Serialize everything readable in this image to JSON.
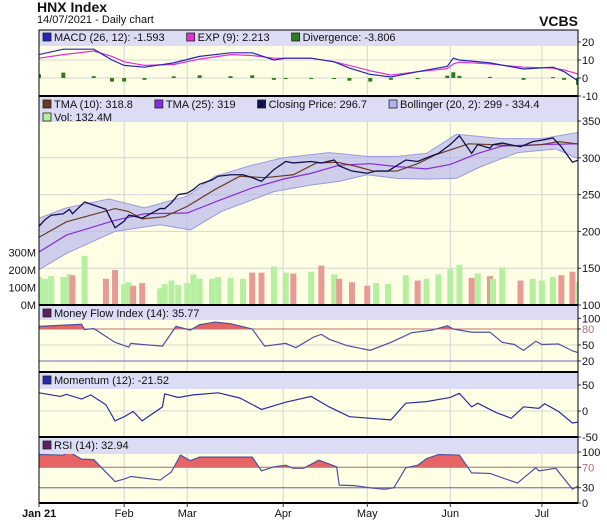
{
  "header": {
    "title": "HNX Index",
    "subtitle": "14/07/2021 - Daily chart",
    "brand": "VCBS"
  },
  "colors": {
    "plot_bg": "#ffffe6",
    "legend_bg": "#dcdcf4",
    "macd": "#2424c0",
    "exp": "#e030d8",
    "divergence": "#2e7d1a",
    "tma10": "#6b3a22",
    "tma25": "#8a2be2",
    "close": "#10104a",
    "bollinger": "#b4b4ee",
    "vol_up": "#b4f0a0",
    "vol_down": "#e89a96",
    "indicator_line": "#5050a0",
    "overbought_fill": "#e86464",
    "momentum": "#2a2aa8"
  },
  "x_axis": {
    "labels": [
      {
        "label": "Jan 21",
        "date": "01-04"
      },
      {
        "label": "Feb",
        "date": "02-01"
      },
      {
        "label": "Mar",
        "date": "03-01"
      },
      {
        "label": "Apr",
        "date": "04-01"
      },
      {
        "label": "May",
        "date": "05-04"
      },
      {
        "label": "Jun",
        "date": "06-01"
      },
      {
        "label": "Jul",
        "date": "07-01"
      }
    ]
  },
  "chart_data": [
    {
      "type": "line",
      "panel": "macd",
      "ylim": [
        -10,
        25
      ],
      "yticks": [
        "20",
        "10",
        "0",
        "-10"
      ],
      "ytick_values": [
        20,
        10,
        0,
        -10
      ],
      "legend": [
        {
          "label": "MACD (26, 12): -1.593",
          "color": "#2424c0"
        },
        {
          "label": "EXP (9): 2.213",
          "color": "#e030d8"
        },
        {
          "label": "Divergence: -3.806",
          "color": "#2e7d1a"
        }
      ],
      "dates": [
        "01-04",
        "01-12",
        "01-22",
        "01-28",
        "02-01",
        "02-10",
        "02-23",
        "03-05",
        "03-15",
        "03-22",
        "03-29",
        "04-02",
        "04-12",
        "04-21",
        "04-27",
        "05-05",
        "05-12",
        "05-21",
        "05-31",
        "06-02",
        "06-04",
        "06-14",
        "06-25",
        "07-05",
        "07-09",
        "07-14"
      ],
      "macd": [
        13,
        16,
        16,
        10,
        7,
        6,
        8.4,
        12,
        14,
        14,
        10,
        11,
        11,
        9,
        5.5,
        2,
        0.6,
        3.5,
        6.5,
        11,
        10,
        8.4,
        5,
        6,
        3.5,
        -1.593
      ],
      "exp": [
        11,
        13,
        15,
        12,
        9,
        7,
        7.5,
        10.5,
        13,
        12.5,
        11,
        11,
        11,
        9,
        7,
        4,
        1.6,
        3.5,
        5.2,
        7.8,
        8.8,
        7.8,
        6,
        5.5,
        4.5,
        2.213
      ],
      "divergence": [
        2,
        3,
        1,
        -2,
        -2,
        -1,
        0.9,
        1.5,
        1,
        1.5,
        -1,
        0,
        0,
        0,
        -1.5,
        -2,
        -1,
        0,
        1.3,
        3.2,
        1.2,
        0.6,
        -1,
        0.5,
        -1,
        -3.806
      ]
    },
    {
      "type": "line",
      "panel": "price",
      "ylim": [
        100,
        360
      ],
      "yticks": [
        "350",
        "300",
        "250",
        "200",
        "150",
        "100"
      ],
      "ytick_values": [
        350,
        300,
        250,
        200,
        150,
        100
      ],
      "vol_ticks": [
        "300M",
        "200M",
        "100M",
        "0M"
      ],
      "vol_tick_values": [
        300,
        200,
        100,
        0
      ],
      "legend": [
        {
          "label": "TMA (10): 318.8",
          "color": "#6b3a22"
        },
        {
          "label": "TMA (25): 319",
          "color": "#8a2be2"
        },
        {
          "label": "Closing Price: 296.7",
          "color": "#10104a"
        },
        {
          "label": "Bollinger (20, 2): 299 - 334.4",
          "color": "#b4b4ee"
        },
        {
          "label": "Vol: 132.4M",
          "color": "#b4f0a0"
        }
      ],
      "close": [
        [
          "01-04",
          207
        ],
        [
          "01-06",
          216
        ],
        [
          "01-08",
          222
        ],
        [
          "01-12",
          224
        ],
        [
          "01-14",
          230
        ],
        [
          "01-15",
          224
        ],
        [
          "01-19",
          240
        ],
        [
          "01-26",
          230
        ],
        [
          "01-29",
          205
        ],
        [
          "02-01",
          214
        ],
        [
          "02-03",
          222
        ],
        [
          "02-05",
          221
        ],
        [
          "02-09",
          218
        ],
        [
          "02-17",
          231
        ],
        [
          "02-19",
          231
        ],
        [
          "02-22",
          239
        ],
        [
          "02-25",
          250
        ],
        [
          "03-01",
          252
        ],
        [
          "03-03",
          257
        ],
        [
          "03-05",
          264
        ],
        [
          "03-09",
          270
        ],
        [
          "03-11",
          275
        ],
        [
          "03-15",
          277
        ],
        [
          "03-19",
          277
        ],
        [
          "03-22",
          273
        ],
        [
          "03-25",
          268
        ],
        [
          "03-29",
          284
        ],
        [
          "04-02",
          295
        ],
        [
          "04-05",
          293
        ],
        [
          "04-12",
          295
        ],
        [
          "04-16",
          293
        ],
        [
          "04-21",
          297
        ],
        [
          "04-23",
          289
        ],
        [
          "04-28",
          282
        ],
        [
          "05-04",
          279
        ],
        [
          "05-07",
          282
        ],
        [
          "05-11",
          282
        ],
        [
          "05-17",
          297
        ],
        [
          "05-21",
          295
        ],
        [
          "05-24",
          300
        ],
        [
          "05-28",
          306
        ],
        [
          "06-01",
          318
        ],
        [
          "06-04",
          330
        ],
        [
          "06-08",
          306
        ],
        [
          "06-10",
          318
        ],
        [
          "06-14",
          313
        ],
        [
          "06-15",
          318
        ],
        [
          "06-18",
          320
        ],
        [
          "06-24",
          315
        ],
        [
          "06-28",
          322
        ],
        [
          "07-01",
          324
        ],
        [
          "07-05",
          327
        ],
        [
          "07-08",
          315
        ],
        [
          "07-12",
          294
        ],
        [
          "07-14",
          296.7
        ]
      ],
      "volume_m": [
        160,
        150,
        165,
        160,
        175,
        170,
        280,
        150,
        200,
        120,
        130,
        110,
        125,
        95,
        120,
        140,
        115,
        125,
        175,
        150,
        150,
        160,
        155,
        150,
        185,
        185,
        220,
        185,
        180,
        190,
        225,
        175,
        150,
        130,
        110,
        125,
        120,
        170,
        140,
        150,
        175,
        205,
        230,
        155,
        180,
        165,
        150,
        215,
        140,
        150,
        140,
        160,
        170,
        190,
        132.4
      ],
      "tma10": [
        [
          "01-04",
          192
        ],
        [
          "01-13",
          213
        ],
        [
          "01-29",
          231
        ],
        [
          "02-03",
          227
        ],
        [
          "02-09",
          217
        ],
        [
          "02-19",
          220
        ],
        [
          "03-01",
          234
        ],
        [
          "03-10",
          257
        ],
        [
          "03-18",
          275
        ],
        [
          "03-26",
          273
        ],
        [
          "04-05",
          277
        ],
        [
          "04-14",
          293
        ],
        [
          "04-22",
          294
        ],
        [
          "04-29",
          289
        ],
        [
          "05-06",
          282
        ],
        [
          "05-14",
          282
        ],
        [
          "05-21",
          292
        ],
        [
          "05-27",
          304
        ],
        [
          "06-07",
          319
        ],
        [
          "06-14",
          318
        ],
        [
          "06-23",
          316
        ],
        [
          "07-01",
          318
        ],
        [
          "07-07",
          322
        ],
        [
          "07-14",
          318.8
        ]
      ],
      "tma25": [
        [
          "01-04",
          172
        ],
        [
          "01-13",
          195
        ],
        [
          "01-29",
          215
        ],
        [
          "02-10",
          224
        ],
        [
          "03-01",
          225
        ],
        [
          "03-10",
          240
        ],
        [
          "03-22",
          259
        ],
        [
          "04-01",
          271
        ],
        [
          "04-12",
          279
        ],
        [
          "04-23",
          290
        ],
        [
          "05-05",
          292
        ],
        [
          "05-14",
          288
        ],
        [
          "05-24",
          285
        ],
        [
          "06-01",
          291
        ],
        [
          "06-10",
          306
        ],
        [
          "06-18",
          316
        ],
        [
          "07-01",
          318
        ],
        [
          "07-14",
          319
        ]
      ],
      "bollinger_upper": [
        [
          "01-04",
          218
        ],
        [
          "01-13",
          232
        ],
        [
          "01-27",
          244
        ],
        [
          "02-10",
          232
        ],
        [
          "03-01",
          248
        ],
        [
          "03-10",
          275
        ],
        [
          "03-22",
          290
        ],
        [
          "04-01",
          300
        ],
        [
          "04-19",
          307
        ],
        [
          "05-04",
          302
        ],
        [
          "05-14",
          302
        ],
        [
          "05-24",
          306
        ],
        [
          "06-03",
          332
        ],
        [
          "06-18",
          326
        ],
        [
          "07-01",
          326
        ],
        [
          "07-14",
          334.4
        ]
      ],
      "bollinger_lower": [
        [
          "01-04",
          148
        ],
        [
          "01-13",
          170
        ],
        [
          "01-29",
          200
        ],
        [
          "02-17",
          209
        ],
        [
          "03-02",
          202
        ],
        [
          "03-12",
          227
        ],
        [
          "03-29",
          254
        ],
        [
          "04-12",
          263
        ],
        [
          "04-23",
          268
        ],
        [
          "05-04",
          277
        ],
        [
          "05-14",
          272
        ],
        [
          "05-24",
          271
        ],
        [
          "06-03",
          272
        ],
        [
          "06-11",
          288
        ],
        [
          "06-23",
          307
        ],
        [
          "07-06",
          312
        ],
        [
          "07-14",
          299
        ]
      ]
    },
    {
      "type": "line",
      "panel": "mfi",
      "ylim": [
        0,
        100
      ],
      "yticks": [
        "100",
        "80",
        "50",
        "20"
      ],
      "ytick_values": [
        100,
        80,
        50,
        20
      ],
      "overbought": 80,
      "oversold": 20,
      "legend": [
        {
          "label": "Money Flow Index (14): 35.77",
          "color": "#602060"
        }
      ],
      "values": [
        [
          "01-04",
          85
        ],
        [
          "01-18",
          89
        ],
        [
          "01-19",
          79
        ],
        [
          "01-22",
          81
        ],
        [
          "01-29",
          55
        ],
        [
          "02-03",
          46
        ],
        [
          "02-04",
          53
        ],
        [
          "02-09",
          51
        ],
        [
          "02-18",
          48
        ],
        [
          "02-24",
          85
        ],
        [
          "03-02",
          78
        ],
        [
          "03-05",
          88
        ],
        [
          "03-10",
          93
        ],
        [
          "03-15",
          90
        ],
        [
          "03-22",
          80
        ],
        [
          "03-26",
          48
        ],
        [
          "04-02",
          53
        ],
        [
          "04-06",
          45
        ],
        [
          "04-13",
          65
        ],
        [
          "04-16",
          70
        ],
        [
          "04-19",
          61
        ],
        [
          "04-26",
          49
        ],
        [
          "05-05",
          40
        ],
        [
          "05-12",
          55
        ],
        [
          "05-19",
          73
        ],
        [
          "05-26",
          78
        ],
        [
          "05-31",
          86
        ],
        [
          "06-02",
          80
        ],
        [
          "06-08",
          74
        ],
        [
          "06-14",
          74
        ],
        [
          "06-18",
          55
        ],
        [
          "06-22",
          51
        ],
        [
          "06-25",
          40
        ],
        [
          "06-29",
          57
        ],
        [
          "07-01",
          51
        ],
        [
          "07-07",
          52
        ],
        [
          "07-12",
          39
        ],
        [
          "07-14",
          35.77
        ]
      ]
    },
    {
      "type": "line",
      "panel": "momentum",
      "ylim": [
        -50,
        50
      ],
      "yticks": [
        "50",
        "0",
        "-50"
      ],
      "ytick_values": [
        50,
        0,
        -50
      ],
      "legend": [
        {
          "label": "Momentum (12): -21.52",
          "color": "#2a2aa8"
        }
      ],
      "values": [
        [
          "01-04",
          35
        ],
        [
          "01-11",
          28
        ],
        [
          "01-13",
          32
        ],
        [
          "01-18",
          23
        ],
        [
          "01-21",
          31
        ],
        [
          "01-26",
          12
        ],
        [
          "01-29",
          -19
        ],
        [
          "02-01",
          -11
        ],
        [
          "02-05",
          -1
        ],
        [
          "02-09",
          -19
        ],
        [
          "02-18",
          8
        ],
        [
          "02-19",
          33
        ],
        [
          "02-25",
          26
        ],
        [
          "03-03",
          31
        ],
        [
          "03-11",
          35
        ],
        [
          "03-18",
          25
        ],
        [
          "03-25",
          3
        ],
        [
          "04-02",
          17
        ],
        [
          "04-12",
          28
        ],
        [
          "04-19",
          8
        ],
        [
          "04-27",
          -11
        ],
        [
          "05-12",
          -17
        ],
        [
          "05-17",
          15
        ],
        [
          "05-24",
          18
        ],
        [
          "06-01",
          26
        ],
        [
          "06-04",
          34
        ],
        [
          "06-08",
          8
        ],
        [
          "06-10",
          15
        ],
        [
          "06-16",
          -3
        ],
        [
          "06-21",
          -14
        ],
        [
          "06-25",
          8
        ],
        [
          "06-30",
          5
        ],
        [
          "07-02",
          14
        ],
        [
          "07-07",
          -1
        ],
        [
          "07-12",
          -23
        ],
        [
          "07-14",
          -21.52
        ]
      ]
    },
    {
      "type": "line",
      "panel": "rsi",
      "ylim": [
        0,
        100
      ],
      "yticks": [
        "100",
        "70",
        "30",
        "0"
      ],
      "ytick_values": [
        100,
        70,
        30,
        0
      ],
      "overbought": 70,
      "oversold": 30,
      "legend": [
        {
          "label": "RSI (14): 32.94",
          "color": "#602060"
        }
      ],
      "values": [
        [
          "01-04",
          95
        ],
        [
          "01-12",
          94
        ],
        [
          "01-14",
          100
        ],
        [
          "01-18",
          86
        ],
        [
          "01-22",
          85
        ],
        [
          "01-29",
          42
        ],
        [
          "02-01",
          47
        ],
        [
          "02-04",
          52
        ],
        [
          "02-17",
          45
        ],
        [
          "02-22",
          61
        ],
        [
          "02-26",
          94
        ],
        [
          "03-02",
          83
        ],
        [
          "03-05",
          90
        ],
        [
          "03-22",
          90
        ],
        [
          "03-25",
          63
        ],
        [
          "03-29",
          71
        ],
        [
          "04-02",
          74
        ],
        [
          "04-05",
          68
        ],
        [
          "04-09",
          68
        ],
        [
          "04-15",
          84
        ],
        [
          "04-22",
          71
        ],
        [
          "04-23",
          35
        ],
        [
          "04-29",
          34
        ],
        [
          "05-06",
          29
        ],
        [
          "05-10",
          27
        ],
        [
          "05-13",
          30
        ],
        [
          "05-17",
          69
        ],
        [
          "05-21",
          74
        ],
        [
          "05-24",
          87
        ],
        [
          "05-28",
          95
        ],
        [
          "06-04",
          94
        ],
        [
          "06-08",
          59
        ],
        [
          "06-14",
          58
        ],
        [
          "06-23",
          39
        ],
        [
          "06-29",
          69
        ],
        [
          "06-30",
          63
        ],
        [
          "07-06",
          68
        ],
        [
          "07-12",
          27
        ],
        [
          "07-14",
          32.94
        ]
      ]
    }
  ]
}
